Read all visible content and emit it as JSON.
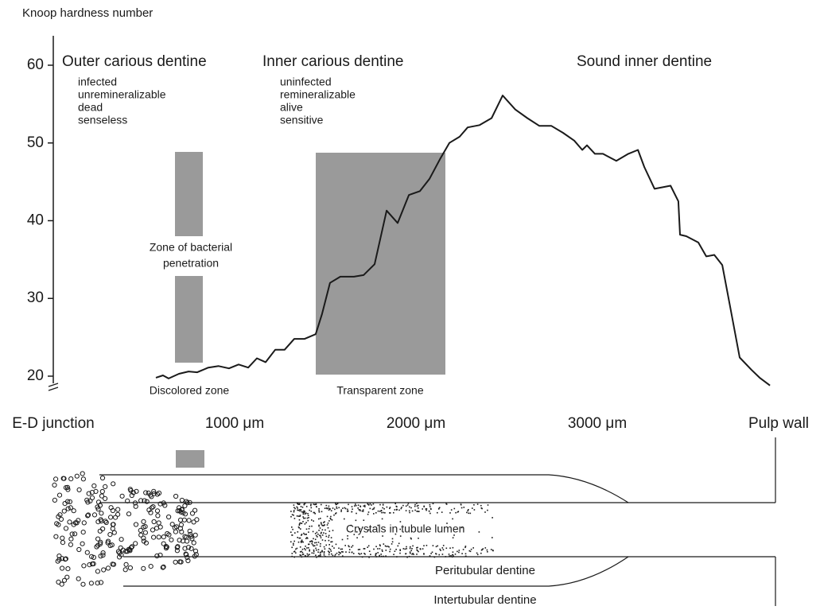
{
  "chart_data": {
    "type": "line",
    "y_label": "Knoop hardness number",
    "color": "#1a1a1a",
    "xlim": [
      0,
      4200
    ],
    "ylim": [
      17,
      64
    ],
    "xticks": [
      {
        "value": 0,
        "label": "E-D junction"
      },
      {
        "value": 1000,
        "label": "1000 μm"
      },
      {
        "value": 2000,
        "label": "2000 μm"
      },
      {
        "value": 3000,
        "label": "3000 μm"
      },
      {
        "value": 4000,
        "label": "Pulp wall"
      }
    ],
    "yticks": [
      20,
      30,
      40,
      50,
      60
    ],
    "x": [
      566,
      605,
      636,
      693,
      746,
      794,
      855,
      912,
      969,
      1022,
      1075,
      1123,
      1171,
      1224,
      1276,
      1329,
      1386,
      1447,
      1482,
      1526,
      1583,
      1658,
      1711,
      1772,
      1838,
      1899,
      1961,
      2022,
      2075,
      2132,
      2184,
      2241,
      2285,
      2351,
      2417,
      2478,
      2548,
      2614,
      2680,
      2746,
      2811,
      2873,
      2917,
      2943,
      2987,
      3031,
      3105,
      3171,
      3224,
      3259,
      3316,
      3404,
      3447,
      3456,
      3491,
      3557,
      3601,
      3645,
      3689,
      3732,
      3785,
      3851,
      3895,
      3952
    ],
    "values": [
      19.8,
      20.1,
      19.7,
      20.3,
      20.6,
      20.5,
      21.1,
      21.3,
      21.0,
      21.5,
      21.1,
      22.3,
      21.8,
      23.4,
      23.4,
      24.8,
      24.8,
      25.4,
      28.0,
      32.0,
      32.8,
      32.8,
      33.0,
      34.4,
      41.3,
      39.7,
      43.3,
      43.8,
      45.4,
      47.9,
      50.0,
      50.8,
      52.0,
      52.3,
      53.2,
      56.1,
      54.3,
      53.2,
      52.2,
      52.2,
      51.3,
      50.3,
      49.1,
      49.7,
      48.6,
      48.6,
      47.7,
      48.6,
      49.1,
      46.9,
      44.1,
      44.5,
      42.5,
      38.2,
      38.0,
      37.2,
      35.4,
      35.6,
      34.3,
      29.0,
      22.4,
      20.8,
      19.8,
      18.8
    ],
    "regions": [
      {
        "title": "Outer carious dentine",
        "traits": [
          "infected",
          "unremineralizable",
          "dead",
          "senseless"
        ]
      },
      {
        "title": "Inner carious dentine",
        "traits": [
          "uninfected",
          "remineralizable",
          "alive",
          "sensitive"
        ]
      },
      {
        "title": "Sound inner dentine"
      }
    ],
    "zones": {
      "bacterial": [
        "Zone of bacterial",
        "penetration"
      ],
      "discolored": "Discolored zone",
      "transparent": "Transparent zone"
    }
  },
  "diagram": {
    "crystals": "Crystals in tubule lumen",
    "peritubular": "Peritubular dentine",
    "intertubular": "Intertubular dentine"
  }
}
